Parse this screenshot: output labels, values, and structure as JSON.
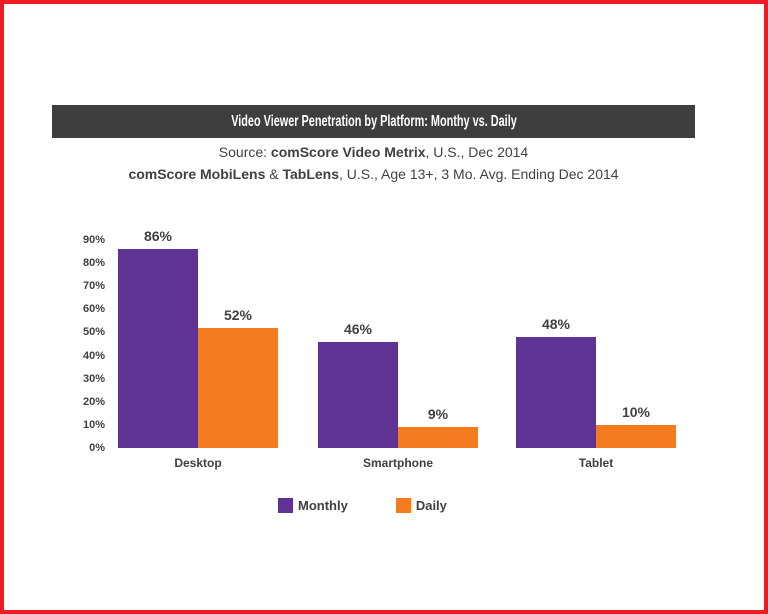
{
  "page": {
    "border_color": "#ed1c24",
    "background_color": "#ffffff"
  },
  "header": {
    "title": "Video Viewer Penetration by Platform: Monthy vs. Daily",
    "bar_color": "#3e3e3e",
    "text_color": "#ffffff"
  },
  "source": {
    "line1": {
      "prefix": "Source: ",
      "bold": "comScore Video Metrix",
      "suffix": ", U.S., Dec 2014"
    },
    "line2": {
      "bold1": "comScore MobiLens",
      "mid": " & ",
      "bold2": "TabLens",
      "suffix": ", U.S., Age 13+, 3 Mo. Avg. Ending Dec 2014"
    }
  },
  "chart_data": {
    "type": "bar",
    "title": "Video Viewer Penetration by Platform: Monthy vs. Daily",
    "categories": [
      "Desktop",
      "Smartphone",
      "Tablet"
    ],
    "series": [
      {
        "name": "Monthly",
        "color": "#5f3394",
        "values": [
          86,
          46,
          48
        ]
      },
      {
        "name": "Daily",
        "color": "#f47b20",
        "values": [
          52,
          9,
          10
        ]
      }
    ],
    "value_label_suffix": "%",
    "xlabel": "",
    "ylabel": "",
    "ylim": [
      0,
      90
    ],
    "ytick_step": 10,
    "ytick_suffix": "%",
    "grid": false,
    "legend_position": "bottom",
    "axis_text_color": "#414042"
  }
}
